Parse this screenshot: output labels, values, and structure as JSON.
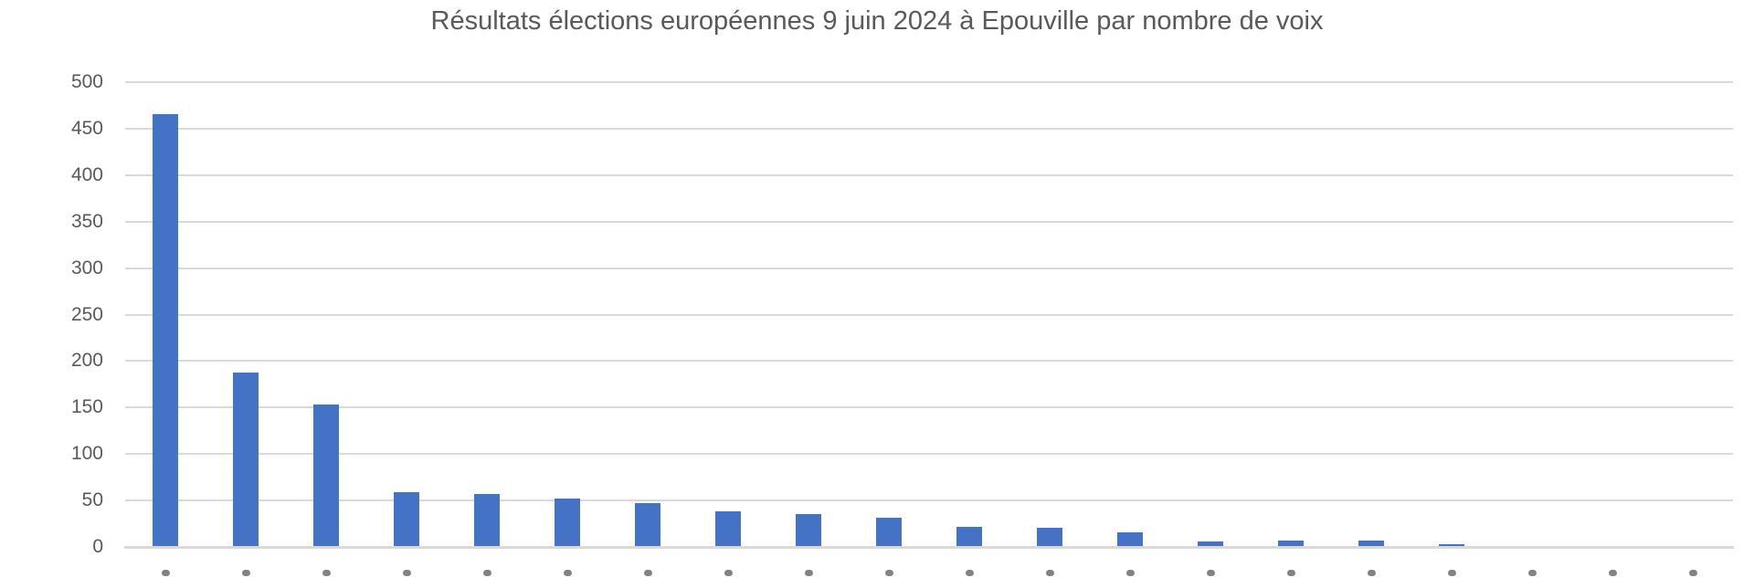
{
  "chart_data": {
    "type": "bar",
    "title": "Résultats élections européennes 9 juin 2024 à Epouville par nombre de voix",
    "categories": [
      "",
      "",
      "",
      "",
      "",
      "",
      "",
      "",
      "",
      "",
      "",
      "",
      "",
      "",
      "",
      "",
      "",
      "",
      "",
      ""
    ],
    "values": [
      465,
      187,
      152,
      58,
      56,
      51,
      46,
      37,
      34,
      30,
      21,
      20,
      15,
      5,
      6,
      6,
      2,
      0,
      0,
      0
    ],
    "xlabel": "",
    "ylabel": "",
    "ylim": [
      0,
      500
    ],
    "y_ticks": [
      0,
      50,
      100,
      150,
      200,
      250,
      300,
      350,
      400,
      450,
      500
    ],
    "grid": true,
    "legend": false,
    "x_tick_labels_cut_off": true,
    "colors": {
      "bar": "#4472C4",
      "gridline": "#D9D9D9",
      "axis_line": "#D9D9D9",
      "tick_label": "#595959",
      "title": "#595959",
      "background": "#FFFFFF"
    }
  }
}
